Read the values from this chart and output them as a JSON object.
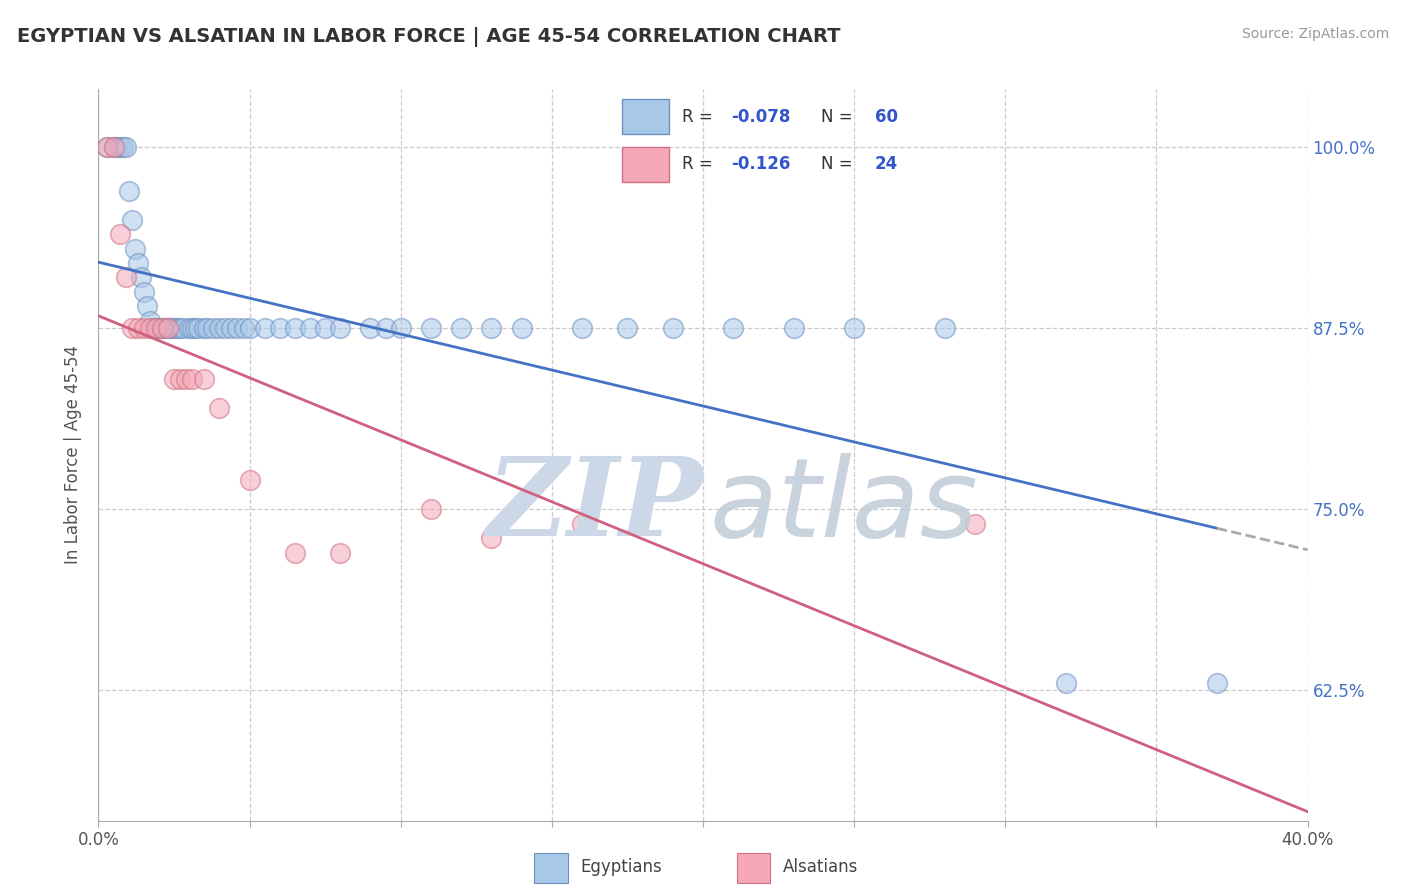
{
  "title": "EGYPTIAN VS ALSATIAN IN LABOR FORCE | AGE 45-54 CORRELATION CHART",
  "source": "Source: ZipAtlas.com",
  "ylabel_label": "In Labor Force | Age 45-54",
  "xlim": [
    0.0,
    0.4
  ],
  "ylim": [
    0.535,
    1.04
  ],
  "xticks": [
    0.0,
    0.05,
    0.1,
    0.15,
    0.2,
    0.25,
    0.3,
    0.35,
    0.4
  ],
  "ytick_vals": [
    0.625,
    0.75,
    0.875,
    1.0
  ],
  "ytick_labels": [
    "62.5%",
    "75.0%",
    "87.5%",
    "100.0%"
  ],
  "blue_color": "#a8c8e8",
  "pink_color": "#f4a8b8",
  "blue_edge": "#7090c0",
  "pink_edge": "#d07080",
  "trend_blue": "#4472c4",
  "trend_pink": "#d06080",
  "trend_gray": "#aaaaaa",
  "legend_r_color": "#3355cc",
  "legend_n_color": "#3355cc",
  "watermark_zip_color": "#ccd8e8",
  "watermark_atlas_color": "#c0ccd8",
  "blue_x": [
    0.003,
    0.005,
    0.006,
    0.007,
    0.008,
    0.009,
    0.01,
    0.011,
    0.012,
    0.013,
    0.014,
    0.015,
    0.016,
    0.017,
    0.018,
    0.019,
    0.02,
    0.021,
    0.022,
    0.023,
    0.024,
    0.025,
    0.026,
    0.027,
    0.028,
    0.03,
    0.031,
    0.032,
    0.033,
    0.035,
    0.036,
    0.038,
    0.04,
    0.042,
    0.044,
    0.046,
    0.048,
    0.05,
    0.055,
    0.06,
    0.065,
    0.07,
    0.075,
    0.08,
    0.09,
    0.095,
    0.1,
    0.11,
    0.12,
    0.13,
    0.14,
    0.16,
    0.175,
    0.19,
    0.21,
    0.23,
    0.25,
    0.28,
    0.32,
    0.37
  ],
  "blue_y": [
    1.0,
    1.0,
    1.0,
    1.0,
    1.0,
    1.0,
    0.97,
    0.95,
    0.93,
    0.92,
    0.91,
    0.9,
    0.89,
    0.88,
    0.875,
    0.875,
    0.875,
    0.875,
    0.875,
    0.875,
    0.875,
    0.875,
    0.875,
    0.875,
    0.875,
    0.875,
    0.875,
    0.875,
    0.875,
    0.875,
    0.875,
    0.875,
    0.875,
    0.875,
    0.875,
    0.875,
    0.875,
    0.875,
    0.875,
    0.875,
    0.875,
    0.875,
    0.875,
    0.875,
    0.875,
    0.875,
    0.875,
    0.875,
    0.875,
    0.875,
    0.875,
    0.875,
    0.875,
    0.875,
    0.875,
    0.875,
    0.875,
    0.875,
    0.63,
    0.63
  ],
  "pink_x": [
    0.003,
    0.005,
    0.007,
    0.009,
    0.011,
    0.013,
    0.015,
    0.017,
    0.019,
    0.021,
    0.023,
    0.025,
    0.027,
    0.029,
    0.031,
    0.035,
    0.04,
    0.05,
    0.065,
    0.08,
    0.11,
    0.13,
    0.16,
    0.29
  ],
  "pink_y": [
    1.0,
    1.0,
    0.94,
    0.91,
    0.875,
    0.875,
    0.875,
    0.875,
    0.875,
    0.875,
    0.875,
    0.84,
    0.84,
    0.84,
    0.84,
    0.84,
    0.82,
    0.77,
    0.72,
    0.72,
    0.75,
    0.73,
    0.74,
    0.74
  ]
}
